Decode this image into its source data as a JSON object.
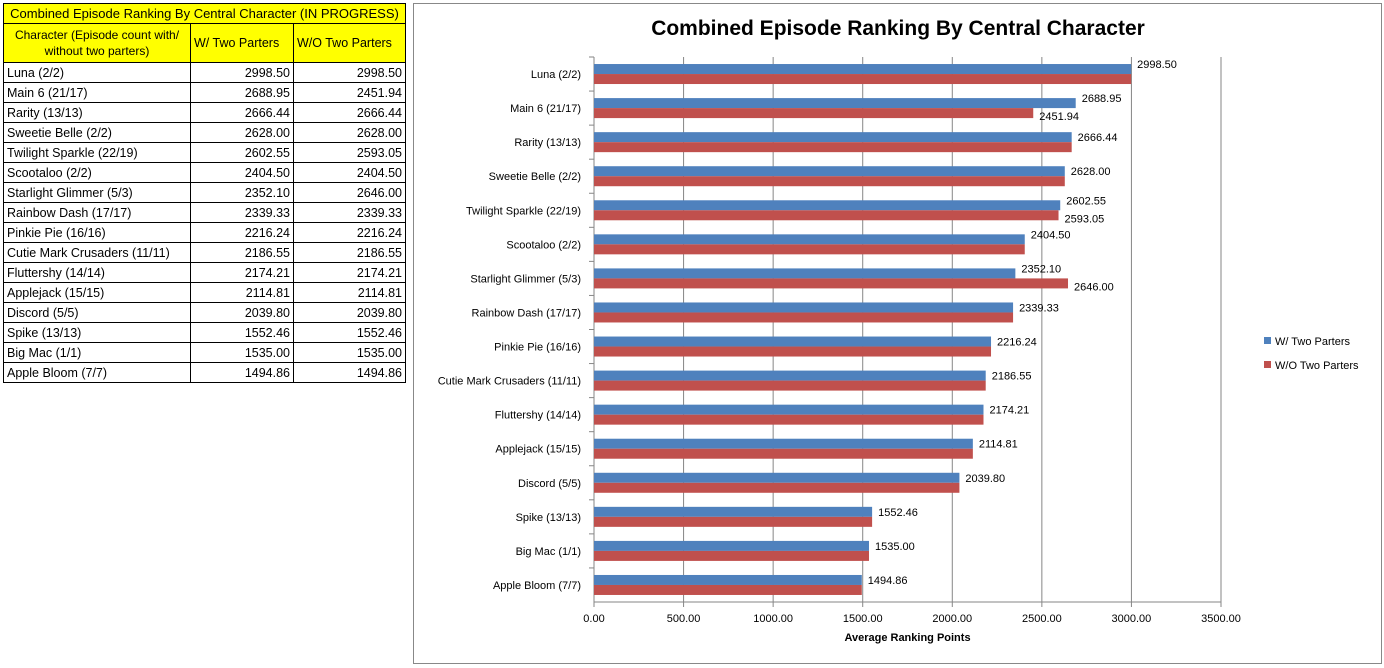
{
  "table": {
    "title": "Combined Episode Ranking By Central Character (IN PROGRESS)",
    "headers": [
      "Character (Episode count with/ without two parters)",
      "W/ Two Parters",
      "W/O Two Parters"
    ],
    "rows": [
      [
        "Luna (2/2)",
        "2998.50",
        "2998.50"
      ],
      [
        "Main 6 (21/17)",
        "2688.95",
        "2451.94"
      ],
      [
        "Rarity (13/13)",
        "2666.44",
        "2666.44"
      ],
      [
        "Sweetie Belle (2/2)",
        "2628.00",
        "2628.00"
      ],
      [
        "Twilight Sparkle (22/19)",
        "2602.55",
        "2593.05"
      ],
      [
        "Scootaloo (2/2)",
        "2404.50",
        "2404.50"
      ],
      [
        "Starlight Glimmer (5/3)",
        "2352.10",
        "2646.00"
      ],
      [
        "Rainbow Dash (17/17)",
        "2339.33",
        "2339.33"
      ],
      [
        "Pinkie Pie (16/16)",
        "2216.24",
        "2216.24"
      ],
      [
        "Cutie Mark Crusaders (11/11)",
        "2186.55",
        "2186.55"
      ],
      [
        "Fluttershy (14/14)",
        "2174.21",
        "2174.21"
      ],
      [
        "Applejack (15/15)",
        "2114.81",
        "2114.81"
      ],
      [
        "Discord (5/5)",
        "2039.80",
        "2039.80"
      ],
      [
        "Spike (13/13)",
        "1552.46",
        "1552.46"
      ],
      [
        "Big Mac (1/1)",
        "1535.00",
        "1535.00"
      ],
      [
        "Apple Bloom (7/7)",
        "1494.86",
        "1494.86"
      ]
    ]
  },
  "chart_data": {
    "type": "bar",
    "orientation": "horizontal",
    "title": "Combined Episode Ranking By Central Character",
    "xlabel": "Average Ranking  Points",
    "ylabel": "",
    "xlim": [
      0,
      3500
    ],
    "xticks": [
      "0.00",
      "500.00",
      "1000.00",
      "1500.00",
      "2000.00",
      "2500.00",
      "3000.00",
      "3500.00"
    ],
    "grid": true,
    "legend": "right",
    "categories": [
      "Luna (2/2)",
      "Main 6 (21/17)",
      "Rarity (13/13)",
      "Sweetie Belle (2/2)",
      "Twilight Sparkle (22/19)",
      "Scootaloo (2/2)",
      "Starlight Glimmer (5/3)",
      "Rainbow Dash (17/17)",
      "Pinkie Pie (16/16)",
      "Cutie Mark Crusaders (11/11)",
      "Fluttershy (14/14)",
      "Applejack (15/15)",
      "Discord (5/5)",
      "Spike (13/13)",
      "Big Mac (1/1)",
      "Apple Bloom (7/7)"
    ],
    "series": [
      {
        "name": "W/ Two Parters",
        "color": "#4f81bd",
        "values": [
          2998.5,
          2688.95,
          2666.44,
          2628.0,
          2602.55,
          2404.5,
          2352.1,
          2339.33,
          2216.24,
          2186.55,
          2174.21,
          2114.81,
          2039.8,
          1552.46,
          1535.0,
          1494.86
        ],
        "labels": [
          "2998.50",
          "2688.95",
          "",
          "",
          "2602.55",
          "2404.50",
          "2352.10",
          "",
          "",
          "",
          "",
          "",
          "",
          "",
          "",
          ""
        ]
      },
      {
        "name": "W/O Two Parters",
        "color": "#c0504d",
        "values": [
          2998.5,
          2451.94,
          2666.44,
          2628.0,
          2593.05,
          2404.5,
          2646.0,
          2339.33,
          2216.24,
          2186.55,
          2174.21,
          2114.81,
          2039.8,
          1552.46,
          1535.0,
          1494.86
        ],
        "labels": [
          "",
          "2451.94",
          "2666.44",
          "2628.00",
          "2593.05",
          "",
          "2646.00",
          "2339.33",
          "2216.24",
          "2186.55",
          "2174.21",
          "2114.81",
          "2039.80",
          "1552.46",
          "1535.00",
          "1494.86"
        ]
      }
    ]
  }
}
